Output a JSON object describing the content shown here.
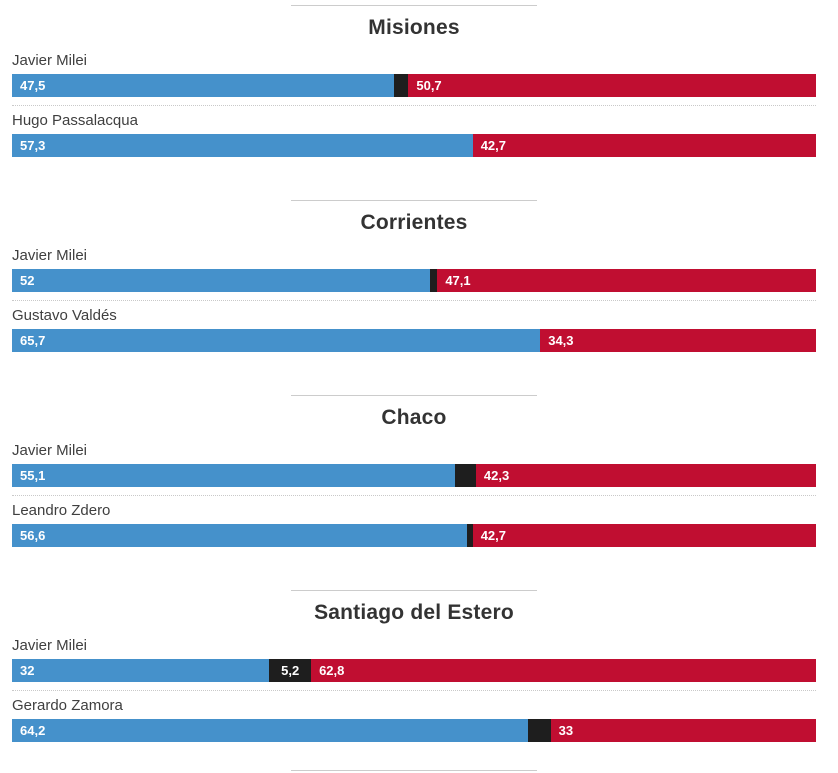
{
  "colors": {
    "blue": "#4591cb",
    "black": "#1e1e1e",
    "red": "#c00e31",
    "divider": "#cccccc",
    "row_separator": "#c9c9c9",
    "title_text": "#333333",
    "label_text": "#3f3f3f",
    "value_text": "#ffffff"
  },
  "chart_data": {
    "type": "bar",
    "variant": "horizontal-stacked",
    "unit": "percent",
    "decimal_separator": ",",
    "axis_range": [
      0,
      100
    ],
    "grid": false,
    "legend": "none-visible",
    "segment_order": [
      "blue",
      "black",
      "red"
    ],
    "sections": [
      {
        "title": "Misiones",
        "rows": [
          {
            "label": "Javier Milei",
            "segments": [
              {
                "color": "blue",
                "value": 47.5,
                "text": "47,5"
              },
              {
                "color": "black",
                "value": 1.8,
                "text": ""
              },
              {
                "color": "red",
                "value": 50.7,
                "text": "50,7"
              }
            ]
          },
          {
            "label": "Hugo Passalacqua",
            "segments": [
              {
                "color": "blue",
                "value": 57.3,
                "text": "57,3"
              },
              {
                "color": "red",
                "value": 42.7,
                "text": "42,7"
              }
            ]
          }
        ]
      },
      {
        "title": "Corrientes",
        "rows": [
          {
            "label": "Javier Milei",
            "segments": [
              {
                "color": "blue",
                "value": 52,
                "text": "52"
              },
              {
                "color": "black",
                "value": 0.9,
                "text": ""
              },
              {
                "color": "red",
                "value": 47.1,
                "text": "47,1"
              }
            ]
          },
          {
            "label": "Gustavo Valdés",
            "segments": [
              {
                "color": "blue",
                "value": 65.7,
                "text": "65,7"
              },
              {
                "color": "red",
                "value": 34.3,
                "text": "34,3"
              }
            ]
          }
        ]
      },
      {
        "title": "Chaco",
        "rows": [
          {
            "label": "Javier Milei",
            "segments": [
              {
                "color": "blue",
                "value": 55.1,
                "text": "55,1"
              },
              {
                "color": "black",
                "value": 2.6,
                "text": ""
              },
              {
                "color": "red",
                "value": 42.3,
                "text": "42,3"
              }
            ]
          },
          {
            "label": "Leandro Zdero",
            "segments": [
              {
                "color": "blue",
                "value": 56.6,
                "text": "56,6"
              },
              {
                "color": "black",
                "value": 0.7,
                "text": ""
              },
              {
                "color": "red",
                "value": 42.7,
                "text": "42,7"
              }
            ]
          }
        ]
      },
      {
        "title": "Santiago del Estero",
        "rows": [
          {
            "label": "Javier Milei",
            "segments": [
              {
                "color": "blue",
                "value": 32,
                "text": "32"
              },
              {
                "color": "black",
                "value": 5.2,
                "text": "5,2"
              },
              {
                "color": "red",
                "value": 62.8,
                "text": "62,8"
              }
            ]
          },
          {
            "label": "Gerardo Zamora",
            "segments": [
              {
                "color": "blue",
                "value": 64.2,
                "text": "64,2"
              },
              {
                "color": "black",
                "value": 2.8,
                "text": ""
              },
              {
                "color": "red",
                "value": 33,
                "text": "33"
              }
            ]
          }
        ]
      }
    ]
  }
}
